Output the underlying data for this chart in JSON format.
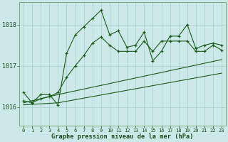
{
  "xlabel": "Graphe pression niveau de la mer (hPa)",
  "bg_color": "#cce8e8",
  "line_color": "#1a5c1a",
  "grid_color": "#a8cece",
  "spine_color": "#7aaa7a",
  "x_ticks": [
    0,
    1,
    2,
    3,
    4,
    5,
    6,
    7,
    8,
    9,
    10,
    11,
    12,
    13,
    14,
    15,
    16,
    17,
    18,
    19,
    20,
    21,
    22,
    23
  ],
  "y_ticks": [
    1016,
    1017,
    1018
  ],
  "ylim": [
    1015.55,
    1018.55
  ],
  "xlim": [
    -0.5,
    23.5
  ],
  "line1_x": [
    0,
    1,
    2,
    3,
    4,
    5,
    6,
    7,
    8,
    9,
    10,
    11,
    12,
    13,
    14,
    15,
    16,
    17,
    18,
    19,
    20,
    21,
    22,
    23
  ],
  "line1_y": [
    1016.35,
    1016.1,
    1016.3,
    1016.3,
    1016.05,
    1017.3,
    1017.75,
    1017.95,
    1018.15,
    1018.35,
    1017.75,
    1017.85,
    1017.45,
    1017.5,
    1017.82,
    1017.12,
    1017.35,
    1017.72,
    1017.72,
    1018.0,
    1017.42,
    1017.5,
    1017.55,
    1017.5
  ],
  "line2_x": [
    0,
    1,
    2,
    3,
    4,
    5,
    6,
    7,
    8,
    9,
    10,
    11,
    12,
    13,
    14,
    15,
    16,
    17,
    18,
    19,
    20,
    21,
    22,
    23
  ],
  "line2_y": [
    1016.15,
    1016.1,
    1016.2,
    1016.25,
    1016.35,
    1016.72,
    1017.0,
    1017.25,
    1017.55,
    1017.7,
    1017.5,
    1017.35,
    1017.35,
    1017.35,
    1017.6,
    1017.35,
    1017.6,
    1017.6,
    1017.6,
    1017.6,
    1017.35,
    1017.35,
    1017.5,
    1017.38
  ],
  "line3_x": [
    0,
    4,
    23
  ],
  "line3_y": [
    1016.1,
    1016.3,
    1017.15
  ],
  "line4_x": [
    0,
    4,
    23
  ],
  "line4_y": [
    1016.05,
    1016.1,
    1016.82
  ]
}
